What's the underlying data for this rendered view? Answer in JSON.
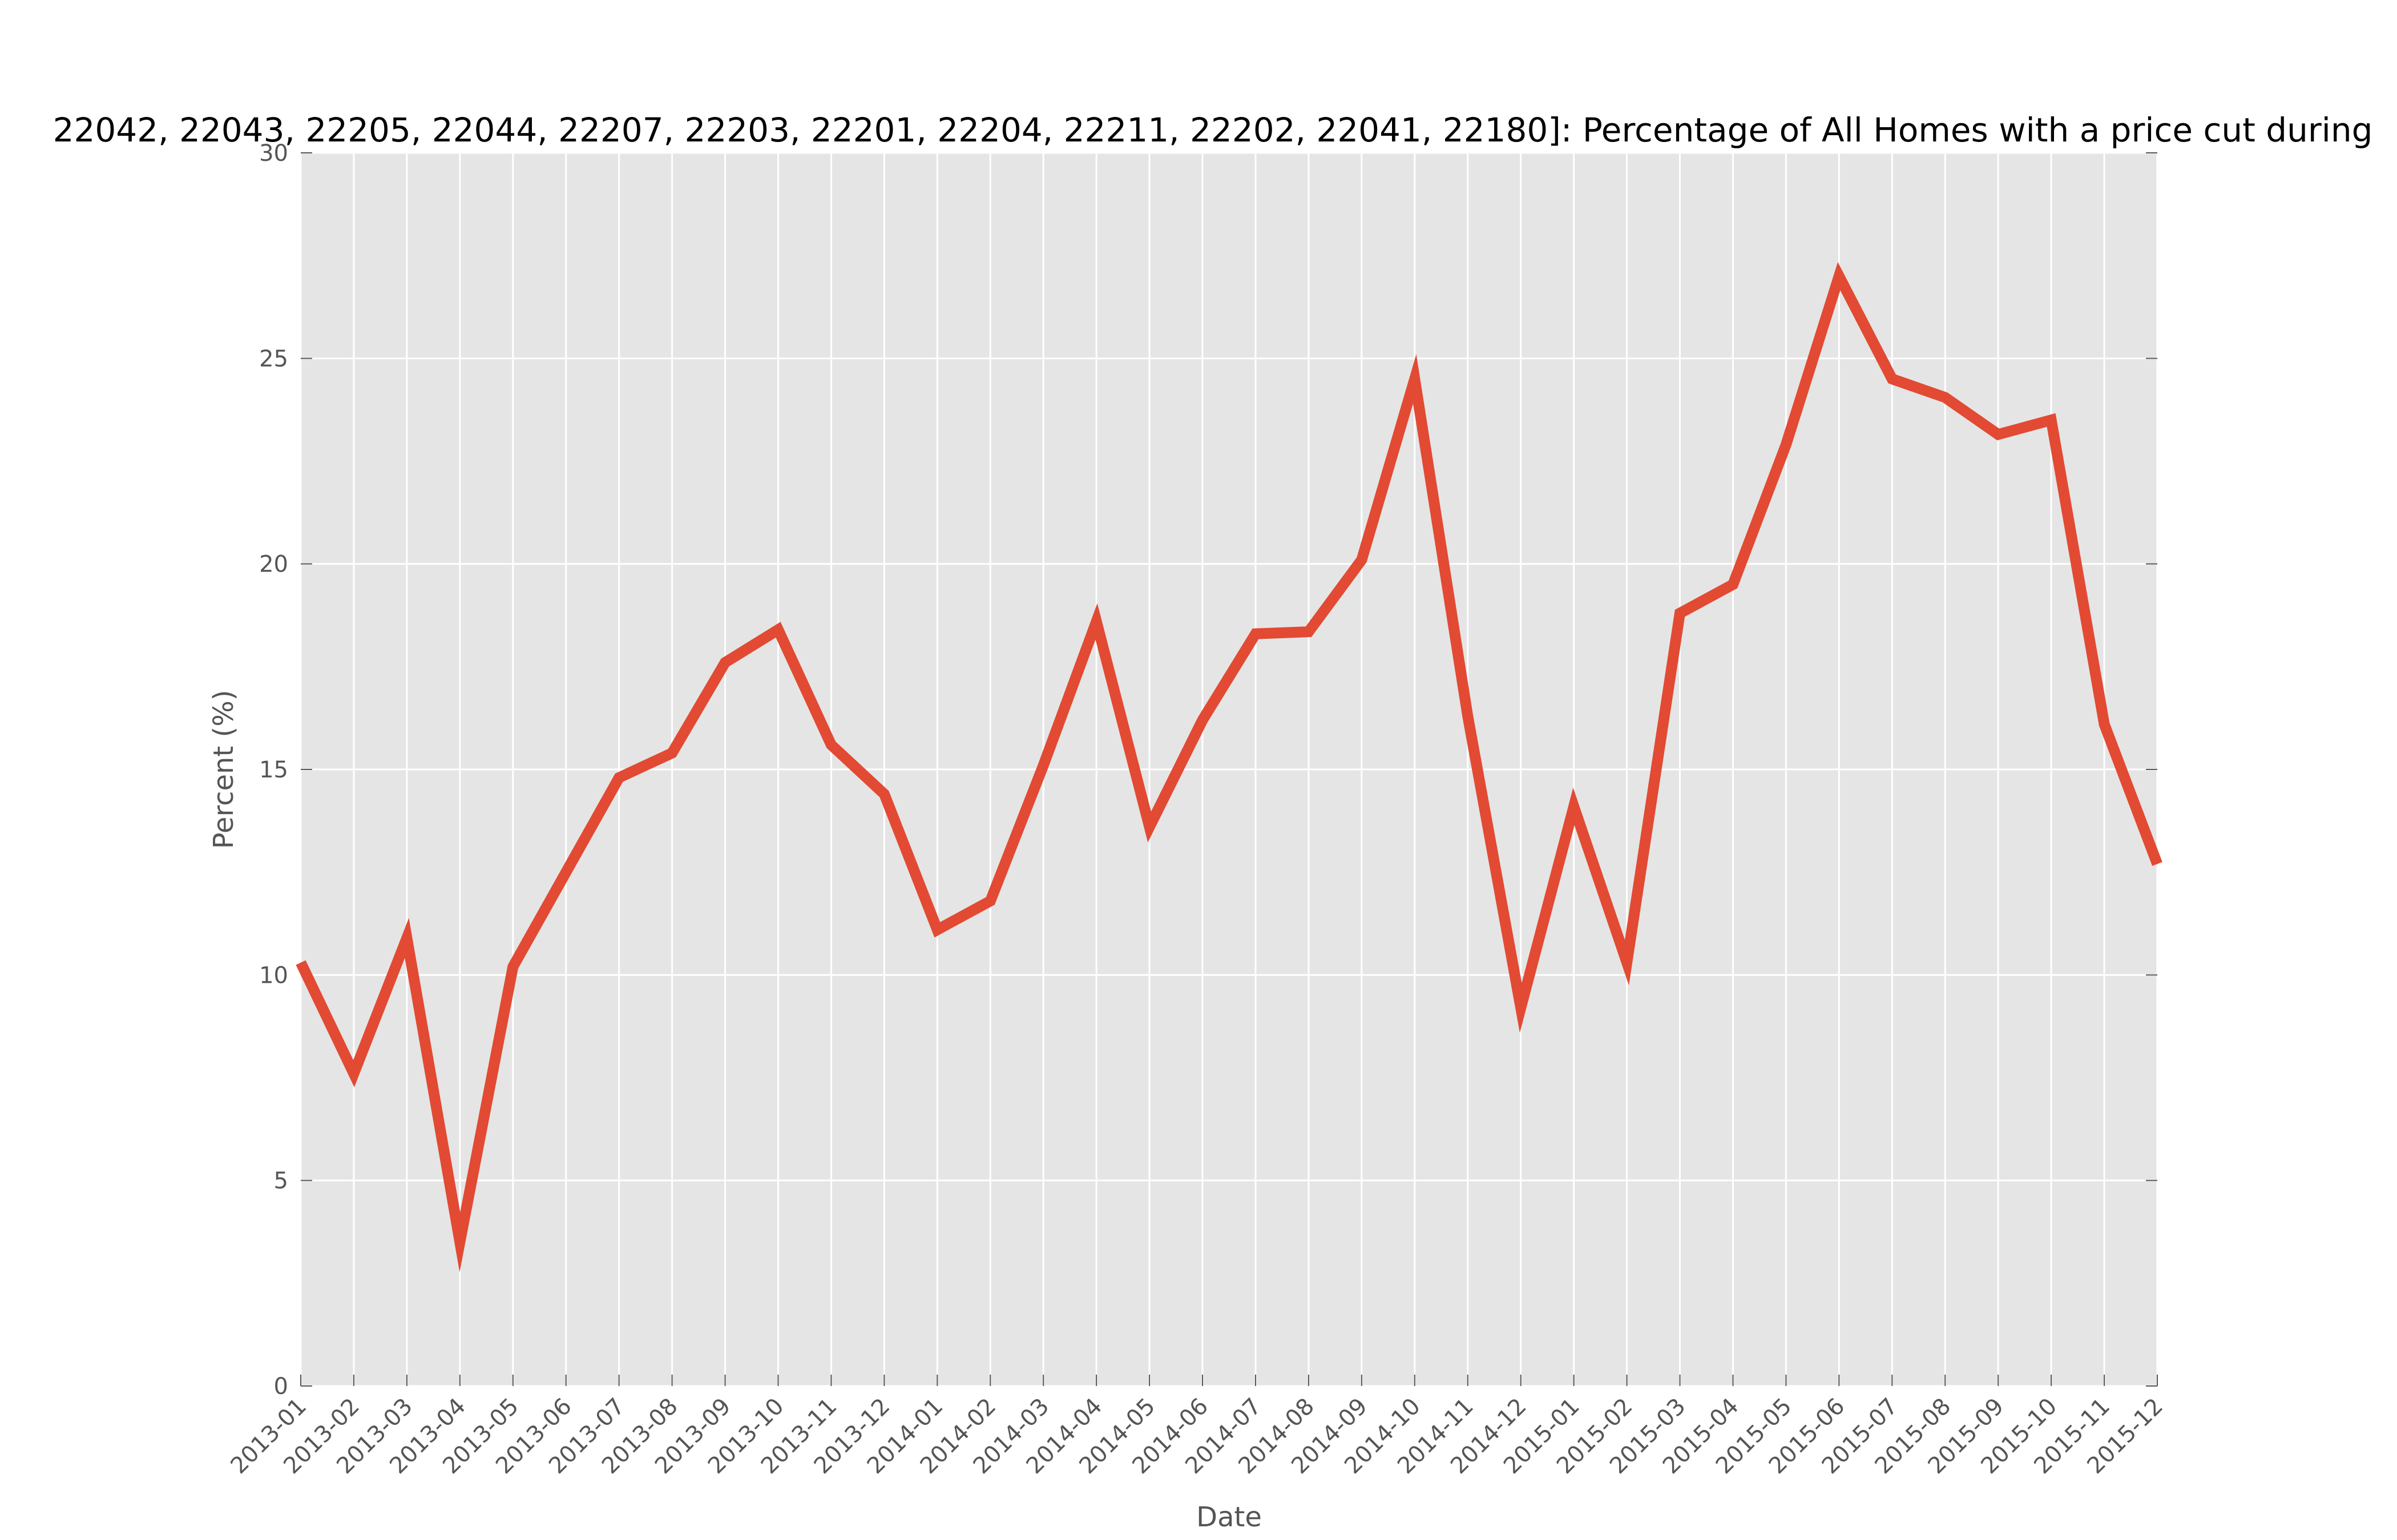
{
  "chart_data": {
    "type": "line",
    "title": "22042, 22043, 22205, 22044, 22207, 22203, 22201, 22204, 22211, 22202, 22041, 22180]: Percentage of All Homes with a price cut during",
    "xlabel": "Date",
    "ylabel": "Percent (%)",
    "ylim": [
      0,
      30
    ],
    "yticks": [
      "0",
      "5",
      "10",
      "15",
      "20",
      "25",
      "30"
    ],
    "grid": true,
    "x": [
      "2013-01",
      "2013-02",
      "2013-03",
      "2013-04",
      "2013-05",
      "2013-06",
      "2013-07",
      "2013-08",
      "2013-09",
      "2013-10",
      "2013-11",
      "2013-12",
      "2014-01",
      "2014-02",
      "2014-03",
      "2014-04",
      "2014-05",
      "2014-06",
      "2014-07",
      "2014-08",
      "2014-09",
      "2014-10",
      "2014-11",
      "2014-12",
      "2015-01",
      "2015-02",
      "2015-03",
      "2015-04",
      "2015-05",
      "2015-06",
      "2015-07",
      "2015-08",
      "2015-09",
      "2015-10",
      "2015-11",
      "2015-12"
    ],
    "series": [
      {
        "color": "#e24a33",
        "values": [
          10.3,
          7.6,
          10.9,
          3.5,
          10.2,
          12.5,
          14.8,
          15.4,
          17.6,
          18.4,
          15.6,
          14.4,
          11.1,
          11.8,
          15.1,
          18.6,
          13.6,
          16.2,
          18.3,
          18.35,
          20.1,
          24.5,
          16.3,
          9.2,
          14.1,
          10.3,
          18.8,
          19.5,
          22.9,
          27.0,
          24.5,
          24.05,
          23.15,
          23.5,
          16.1,
          12.7
        ]
      }
    ],
    "colors": {
      "plot_bg": "#e5e5e5",
      "grid": "#ffffff",
      "line": "#e24a33"
    }
  }
}
